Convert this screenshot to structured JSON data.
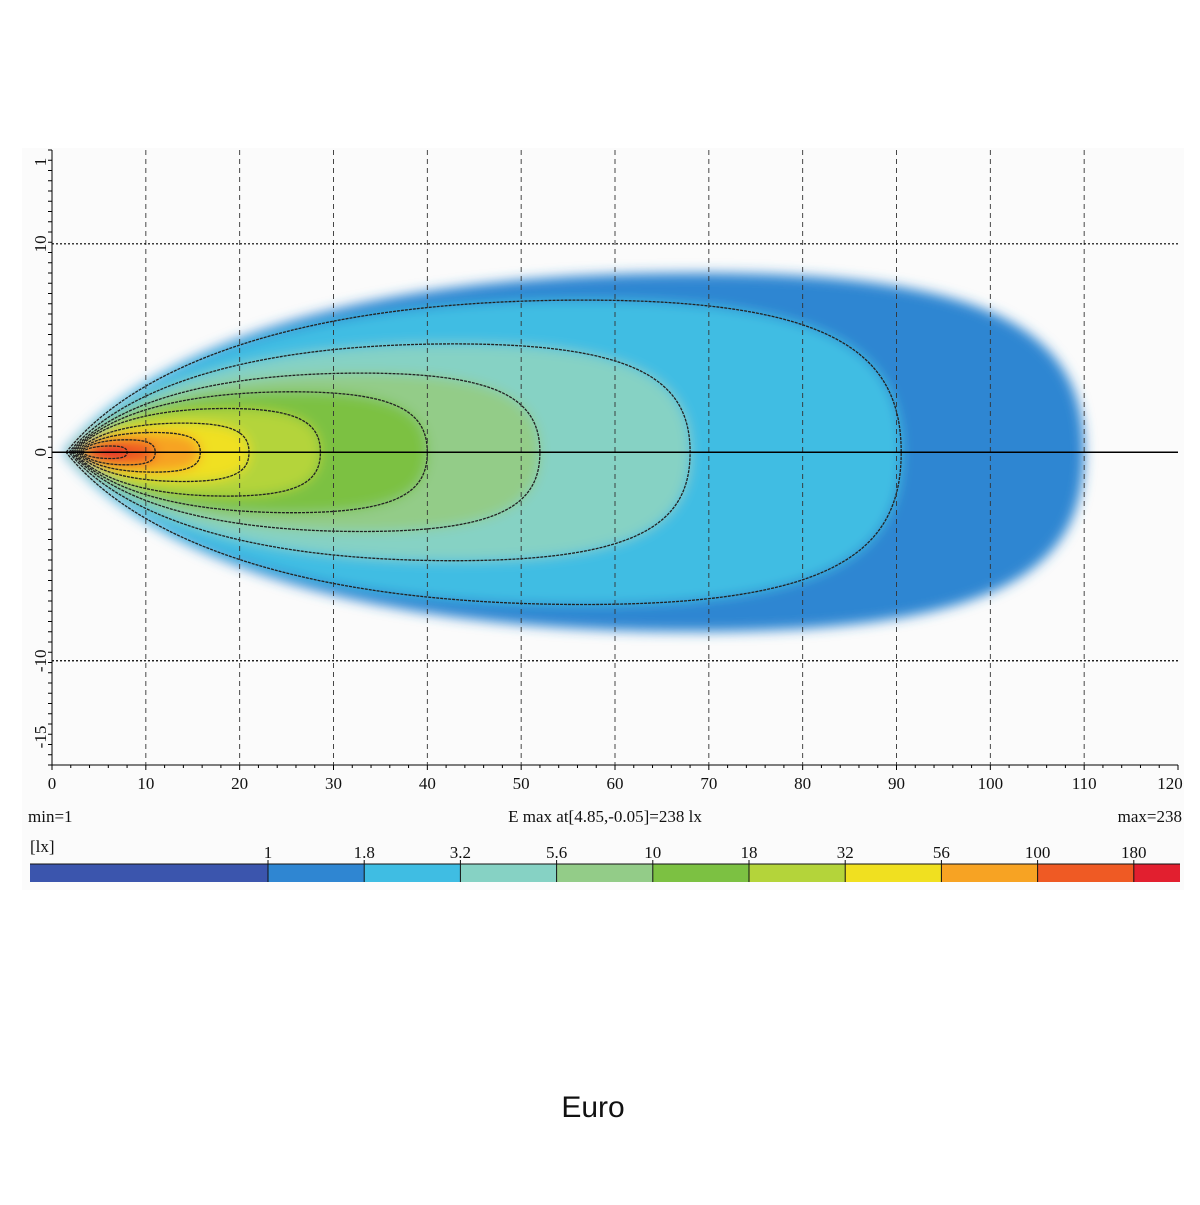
{
  "chart_data": {
    "type": "isolux",
    "xlim": [
      0,
      120
    ],
    "xticks": [
      0,
      10,
      20,
      30,
      40,
      50,
      60,
      70,
      80,
      90,
      100,
      110,
      120
    ],
    "ylim": [
      -15,
      14.5
    ],
    "yticks": [
      {
        "value": 14.5,
        "label": "1"
      },
      10,
      0,
      -10,
      -15
    ],
    "min_label": "min=1",
    "max_label": "max=238",
    "emax_label": "E max at[4.85,-0.05]=238 lx",
    "unit_label": "[lx]",
    "levels": [
      1,
      1.8,
      3.2,
      5.6,
      10,
      18,
      32,
      56,
      100,
      180
    ],
    "below_color": "#3b55ad",
    "level_colors": [
      "#2f86d2",
      "#3fbde3",
      "#86d2c4",
      "#93cc88",
      "#7cc142",
      "#b4d43a",
      "#f0e020",
      "#f7a323",
      "#ef5a24",
      "#e21f2f"
    ],
    "contour_x_start": [
      1.2,
      1.5,
      1.8,
      2,
      2.2,
      2.4,
      2.6,
      2.8,
      3,
      3.2
    ],
    "contour_x_end": [
      110,
      90.5,
      68,
      52,
      40,
      28.6,
      21,
      15.8,
      11,
      8
    ],
    "contour_half_width": [
      8.6,
      7.3,
      5.2,
      3.8,
      2.9,
      2.1,
      1.4,
      0.95,
      0.6,
      0.3
    ],
    "caption": "Euro"
  }
}
